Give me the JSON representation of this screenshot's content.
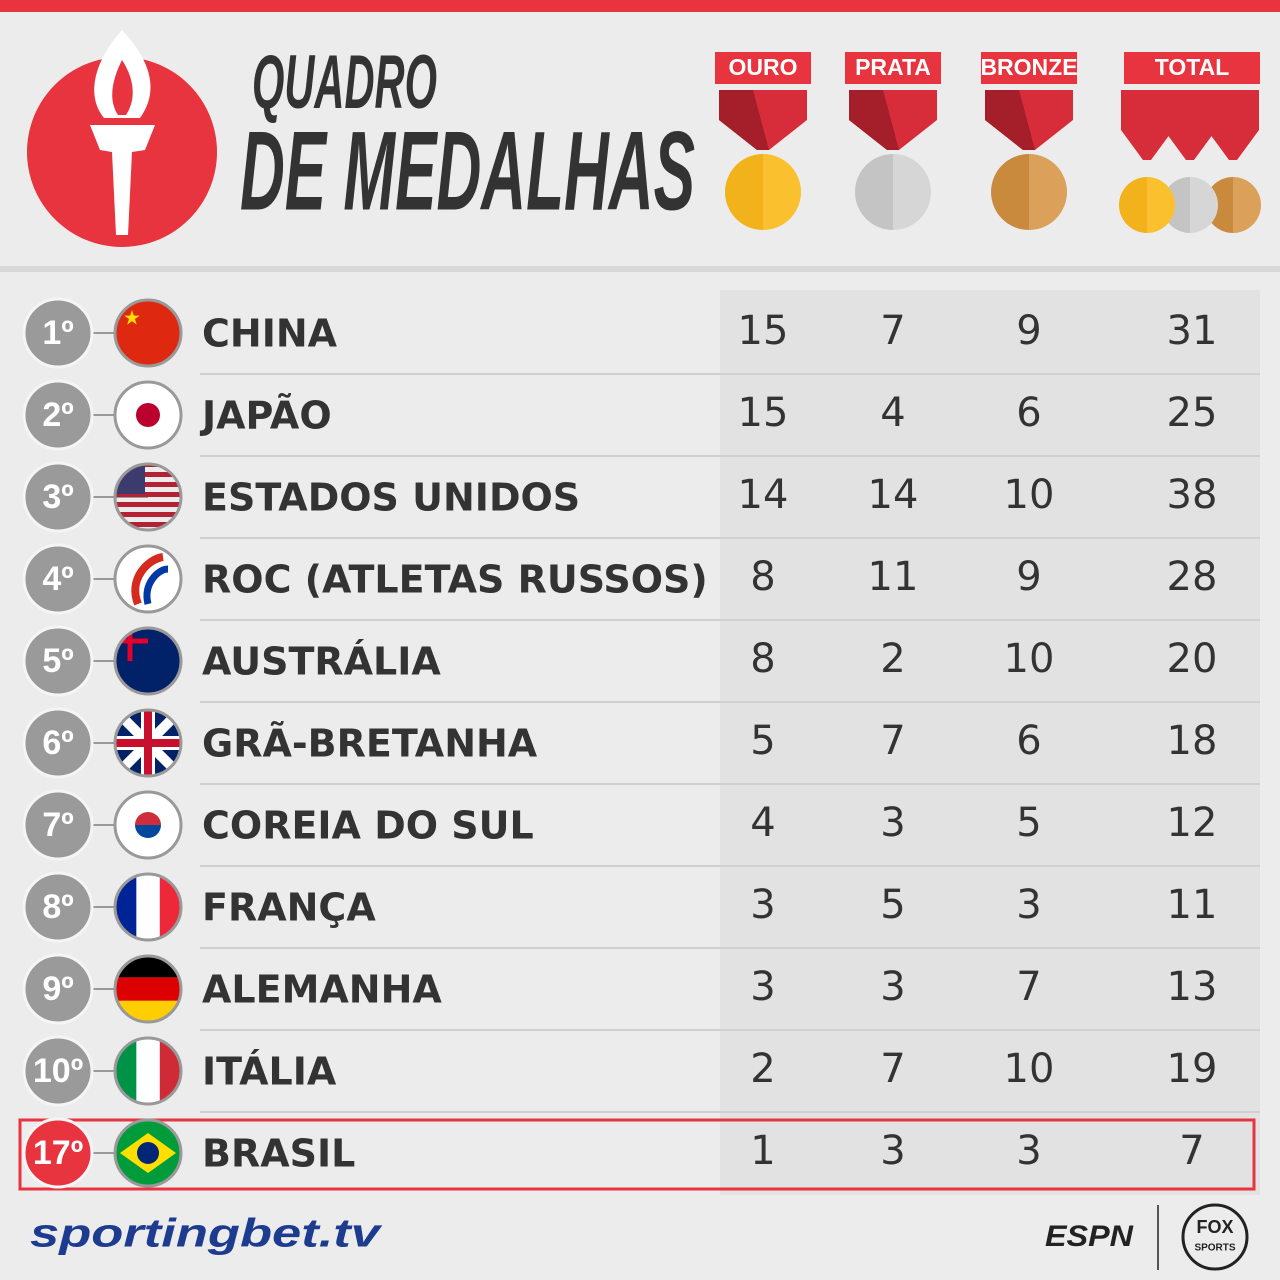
{
  "header": {
    "title_line1": "QUADRO",
    "title_line2": "DE MEDALHAS"
  },
  "table": {
    "columns": [
      "OURO",
      "PRATA",
      "BRONZE",
      "TOTAL"
    ],
    "rows": [
      {
        "rank": "1º",
        "country": "CHINA",
        "gold": 15,
        "silver": 7,
        "bronze": 9,
        "total": 31
      },
      {
        "rank": "2º",
        "country": "JAPÃO",
        "gold": 15,
        "silver": 4,
        "bronze": 6,
        "total": 25
      },
      {
        "rank": "3º",
        "country": "ESTADOS UNIDOS",
        "gold": 14,
        "silver": 14,
        "bronze": 10,
        "total": 38
      },
      {
        "rank": "4º",
        "country": "ROC (ATLETAS RUSSOS)",
        "gold": 8,
        "silver": 11,
        "bronze": 9,
        "total": 28
      },
      {
        "rank": "5º",
        "country": "AUSTRÁLIA",
        "gold": 8,
        "silver": 2,
        "bronze": 10,
        "total": 20
      },
      {
        "rank": "6º",
        "country": "GRÃ-BRETANHA",
        "gold": 5,
        "silver": 7,
        "bronze": 6,
        "total": 18
      },
      {
        "rank": "7º",
        "country": "COREIA DO SUL",
        "gold": 4,
        "silver": 3,
        "bronze": 5,
        "total": 12
      },
      {
        "rank": "8º",
        "country": "FRANÇA",
        "gold": 3,
        "silver": 5,
        "bronze": 3,
        "total": 11
      },
      {
        "rank": "9º",
        "country": "ALEMANHA",
        "gold": 3,
        "silver": 3,
        "bronze": 7,
        "total": 13
      },
      {
        "rank": "10º",
        "country": "ITÁLIA",
        "gold": 2,
        "silver": 7,
        "bronze": 10,
        "total": 19
      },
      {
        "rank": "17º",
        "country": "BRASIL",
        "gold": 1,
        "silver": 3,
        "bronze": 3,
        "total": 7
      }
    ]
  },
  "footer": {
    "sponsor": "sportingbet.tv",
    "broadcaster1": "ESPN",
    "broadcaster2_line1": "FOX",
    "broadcaster2_line2": "SPORTS"
  }
}
